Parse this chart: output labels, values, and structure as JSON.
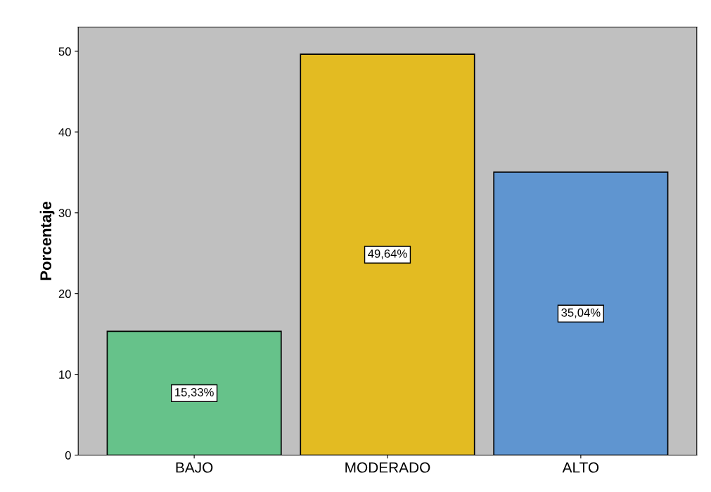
{
  "chart_data": {
    "type": "bar",
    "ylabel": "Porcentaje",
    "categories": [
      "BAJO",
      "MODERADO",
      "ALTO"
    ],
    "values": [
      15.33,
      49.64,
      35.04
    ],
    "colors": [
      "#66c28a",
      "#e3bb22",
      "#5f95d0"
    ],
    "value_labels": [
      "15,33%",
      "49,64%",
      "35,04%"
    ],
    "ylim": [
      0,
      53
    ],
    "yticks": [
      0,
      10,
      20,
      30,
      40,
      50
    ],
    "grid": false
  }
}
